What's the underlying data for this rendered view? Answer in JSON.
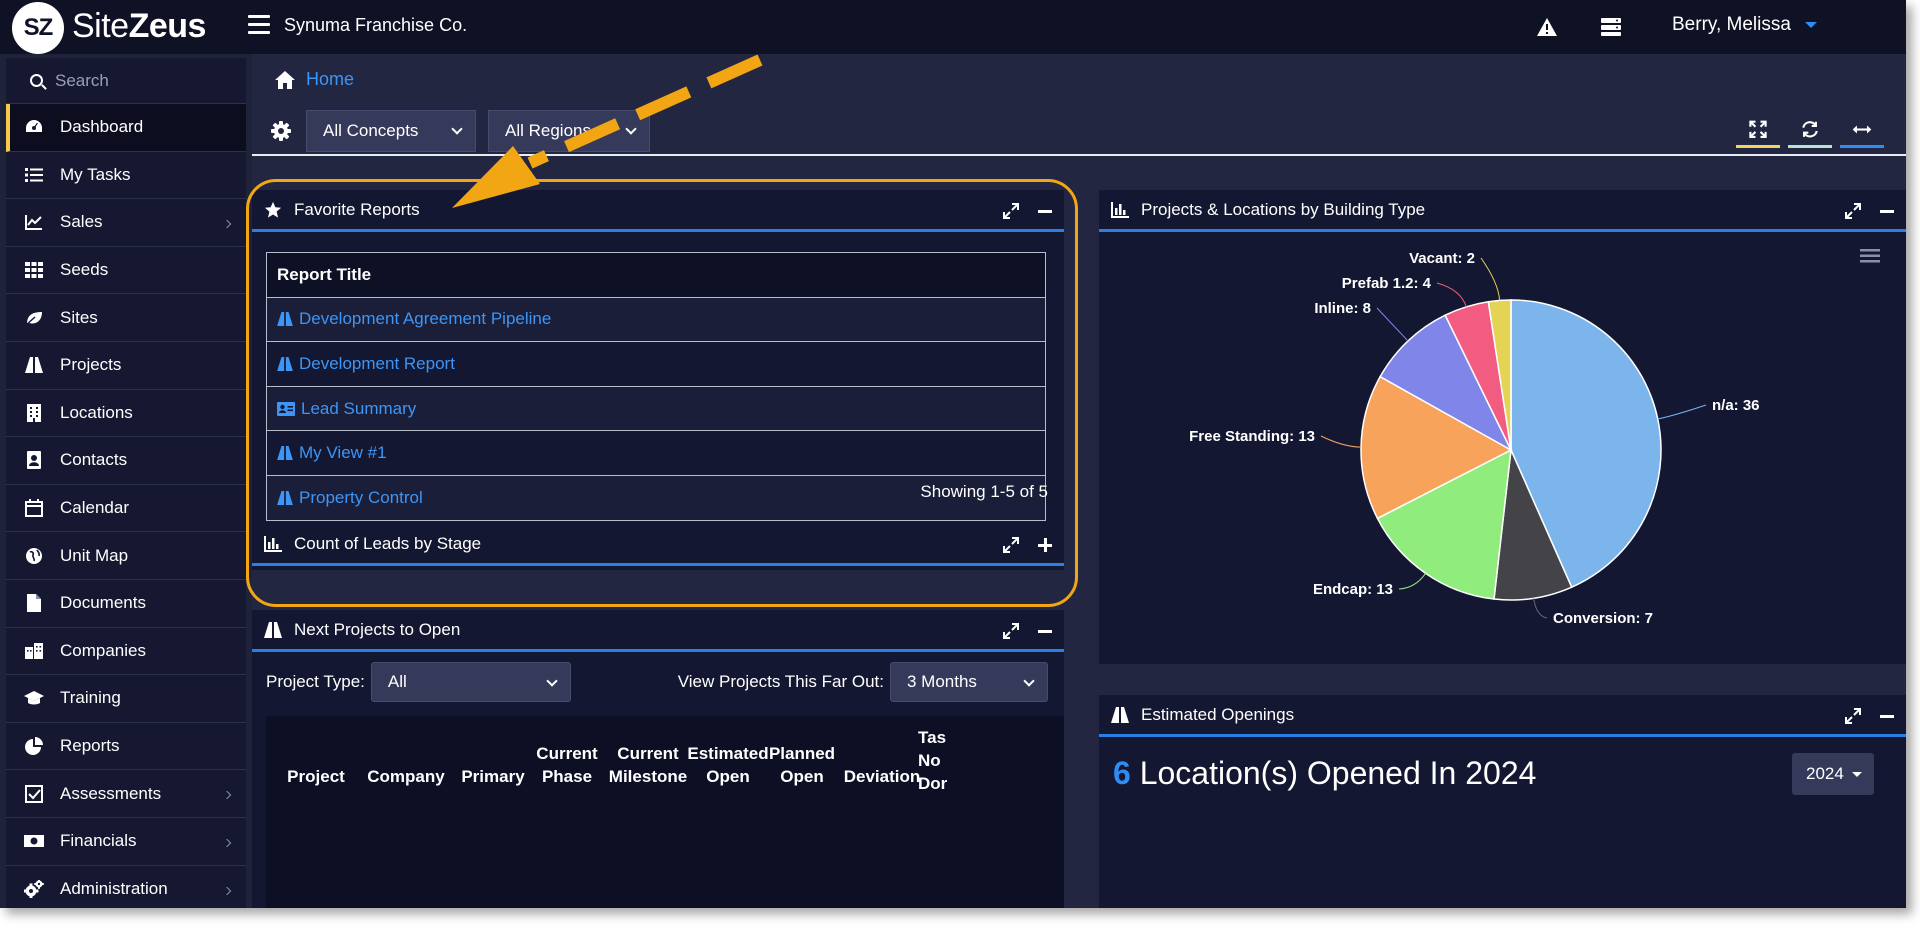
{
  "brand": {
    "logo_text": "SZ",
    "name_light": "Site",
    "name_bold": "Zeus"
  },
  "header": {
    "org_name": "Synuma Franchise Co.",
    "user_name": "Berry, Melissa",
    "icons": [
      "warning-icon",
      "server-icon",
      "menu-icon"
    ]
  },
  "sidebar": {
    "search_placeholder": "Search",
    "items": [
      {
        "label": "Dashboard",
        "icon": "dashboard-icon",
        "active": true,
        "submenu": false
      },
      {
        "label": "My Tasks",
        "icon": "tasks-icon",
        "submenu": false
      },
      {
        "label": "Sales",
        "icon": "chart-line-icon",
        "submenu": true
      },
      {
        "label": "Seeds",
        "icon": "grid-icon",
        "submenu": false
      },
      {
        "label": "Sites",
        "icon": "leaf-icon",
        "submenu": false
      },
      {
        "label": "Projects",
        "icon": "road-icon",
        "submenu": false
      },
      {
        "label": "Locations",
        "icon": "building-icon",
        "submenu": false
      },
      {
        "label": "Contacts",
        "icon": "address-book-icon",
        "submenu": false
      },
      {
        "label": "Calendar",
        "icon": "calendar-icon",
        "submenu": false
      },
      {
        "label": "Unit Map",
        "icon": "globe-icon",
        "submenu": false
      },
      {
        "label": "Documents",
        "icon": "document-icon",
        "submenu": false
      },
      {
        "label": "Companies",
        "icon": "companies-icon",
        "submenu": false
      },
      {
        "label": "Training",
        "icon": "graduation-cap-icon",
        "submenu": false
      },
      {
        "label": "Reports",
        "icon": "pie-chart-icon",
        "submenu": false
      },
      {
        "label": "Assessments",
        "icon": "checkbox-icon",
        "submenu": true
      },
      {
        "label": "Financials",
        "icon": "money-icon",
        "submenu": true
      },
      {
        "label": "Administration",
        "icon": "cogs-icon",
        "submenu": true
      }
    ]
  },
  "breadcrumb": {
    "home": "Home"
  },
  "filters": {
    "concepts": "All Concepts",
    "regions": "All Regions"
  },
  "toolbar": {
    "bar_colors": [
      "#f4d35e",
      "#b9e3cc",
      "#2f8cf0"
    ]
  },
  "favorite_reports": {
    "title": "Favorite Reports",
    "column": "Report Title",
    "rows": [
      {
        "title": "Development Agreement Pipeline",
        "icon": "road-icon"
      },
      {
        "title": "Development Report",
        "icon": "road-icon"
      },
      {
        "title": "Lead Summary",
        "icon": "id-card-icon"
      },
      {
        "title": "My View #1",
        "icon": "road-icon"
      },
      {
        "title": "Property Control",
        "icon": "road-icon"
      }
    ],
    "showing": "Showing 1-5 of 5"
  },
  "leads_widget": {
    "title": "Count of Leads by Stage"
  },
  "next_projects": {
    "title": "Next Projects to Open",
    "project_type_label": "Project Type:",
    "project_type_value": "All",
    "far_out_label": "View Projects This Far Out:",
    "far_out_value": "3 Months",
    "columns": [
      "Project",
      "Company",
      "Primary",
      "Current Phase",
      "Current Milestone",
      "Estimated Open",
      "Planned Open",
      "Deviation",
      "Tas No Dor"
    ]
  },
  "building_type_widget": {
    "title": "Projects & Locations by Building Type"
  },
  "chart_data": {
    "type": "pie",
    "categories": [
      "n/a",
      "Conversion",
      "Endcap",
      "Free Standing",
      "Inline",
      "Prefab 1.2",
      "Vacant"
    ],
    "values": [
      36,
      7,
      13,
      13,
      8,
      4,
      2
    ],
    "labels": [
      "n/a: 36",
      "Conversion: 7",
      "Endcap: 13",
      "Free Standing: 13",
      "Inline: 8",
      "Prefab 1.2: 4",
      "Vacant: 2"
    ],
    "colors": [
      "#7cb5ec",
      "#434348",
      "#90ed7d",
      "#f7a35c",
      "#8085e9",
      "#f15c80",
      "#e4d354"
    ]
  },
  "estimated_openings": {
    "title": "Estimated Openings",
    "count": "6",
    "headline": "Location(s) Opened In 2024",
    "year": "2024"
  }
}
